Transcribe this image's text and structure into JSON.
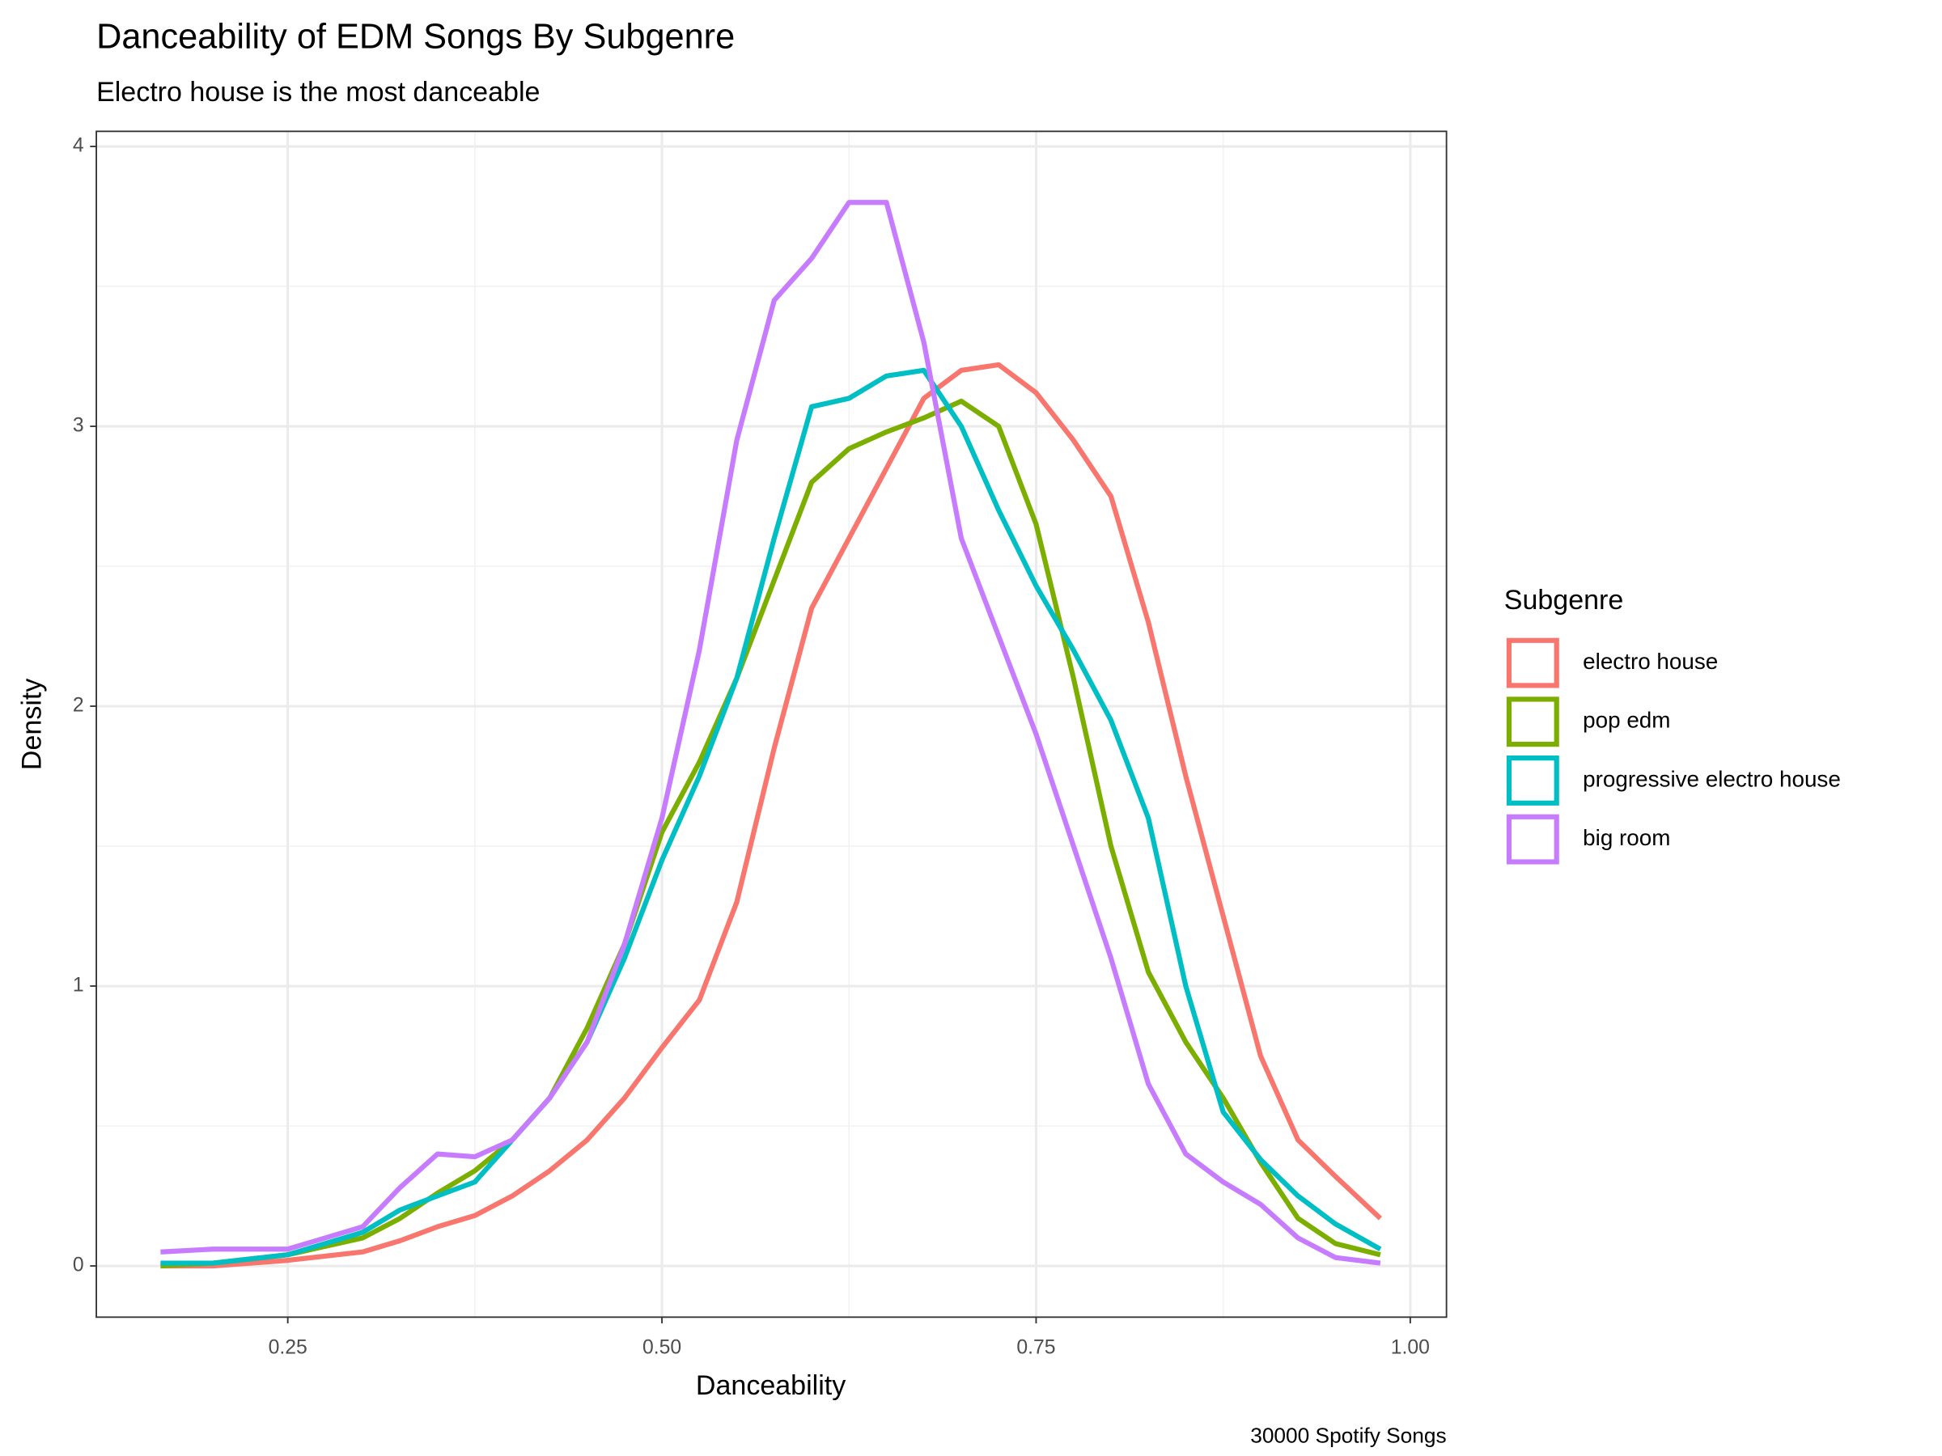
{
  "chart_data": {
    "type": "line",
    "title": "Danceability of EDM Songs By Subgenre",
    "subtitle": "Electro house is the most danceable",
    "x_label": "Danceability",
    "y_label": "Density",
    "caption": "30000 Spotify Songs",
    "legend_title": "Subgenre",
    "legend_position": "right",
    "grid": true,
    "x": [
      0.165,
      0.2,
      0.25,
      0.3,
      0.325,
      0.35,
      0.375,
      0.4,
      0.425,
      0.45,
      0.475,
      0.5,
      0.525,
      0.55,
      0.575,
      0.6,
      0.625,
      0.65,
      0.675,
      0.7,
      0.725,
      0.75,
      0.775,
      0.8,
      0.825,
      0.85,
      0.875,
      0.9,
      0.925,
      0.95,
      0.98
    ],
    "series": [
      {
        "name": "electro house",
        "color": "#f8766d",
        "values": [
          0,
          0,
          0.02,
          0.05,
          0.09,
          0.14,
          0.18,
          0.25,
          0.34,
          0.45,
          0.6,
          0.78,
          0.95,
          1.3,
          1.85,
          2.35,
          2.6,
          2.85,
          3.1,
          3.2,
          3.22,
          3.12,
          2.95,
          2.75,
          2.3,
          1.75,
          1.25,
          0.75,
          0.45,
          0.32,
          0.17
        ]
      },
      {
        "name": "pop edm",
        "color": "#7cae00",
        "values": [
          0,
          0.01,
          0.04,
          0.1,
          0.17,
          0.26,
          0.34,
          0.45,
          0.6,
          0.85,
          1.15,
          1.55,
          1.8,
          2.1,
          2.45,
          2.8,
          2.92,
          2.98,
          3.03,
          3.09,
          3.0,
          2.65,
          2.1,
          1.5,
          1.05,
          0.8,
          0.6,
          0.37,
          0.17,
          0.08,
          0.04
        ]
      },
      {
        "name": "progressive electro house",
        "color": "#00bfc4",
        "values": [
          0.01,
          0.01,
          0.04,
          0.12,
          0.2,
          0.25,
          0.3,
          0.45,
          0.6,
          0.8,
          1.1,
          1.45,
          1.75,
          2.1,
          2.6,
          3.07,
          3.1,
          3.18,
          3.2,
          3.0,
          2.7,
          2.43,
          2.2,
          1.95,
          1.6,
          1.0,
          0.55,
          0.38,
          0.25,
          0.15,
          0.06
        ]
      },
      {
        "name": "big room",
        "color": "#c77cff",
        "values": [
          0.05,
          0.06,
          0.06,
          0.14,
          0.28,
          0.4,
          0.39,
          0.45,
          0.6,
          0.8,
          1.15,
          1.6,
          2.2,
          2.95,
          3.45,
          3.6,
          3.8,
          3.8,
          3.3,
          2.6,
          2.25,
          1.9,
          1.5,
          1.1,
          0.65,
          0.4,
          0.3,
          0.22,
          0.1,
          0.03,
          0.01
        ]
      }
    ],
    "xlim": [
      0.1221,
      1.0242
    ],
    "ylim": [
      -0.183,
      4.054
    ],
    "xticks": [
      {
        "value": 0.25,
        "label": "0.25"
      },
      {
        "value": 0.5,
        "label": "0.50"
      },
      {
        "value": 0.75,
        "label": "0.75"
      },
      {
        "value": 1.0,
        "label": "1.00"
      }
    ],
    "yticks": [
      0,
      1,
      2,
      3,
      4
    ],
    "x_minor_grid": [
      0.375,
      0.625,
      0.875
    ],
    "y_minor_grid": [
      0.5,
      1.5,
      2.5,
      3.5
    ]
  }
}
